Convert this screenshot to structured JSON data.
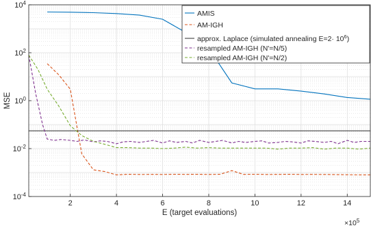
{
  "chart_data": {
    "type": "line",
    "xlabel": "E (target evaluations)",
    "ylabel": "MSE",
    "x_scale_label": "×10",
    "x_scale_exponent": "5",
    "xlim": [
      0.2,
      15
    ],
    "ylim_log10": [
      -4,
      4
    ],
    "y_scale": "log",
    "grid": true,
    "legend_position": "top-right",
    "x_ticks": [
      2,
      4,
      6,
      8,
      10,
      12,
      14
    ],
    "x_tick_labels": [
      "2",
      "4",
      "6",
      "8",
      "10",
      "12",
      "14"
    ],
    "y_ticks_log10": [
      -4,
      -2,
      0,
      2,
      4
    ],
    "y_tick_labels": [
      {
        "base": "10",
        "exp": "-4"
      },
      {
        "base": "10",
        "exp": "-2"
      },
      {
        "base": "10",
        "exp": "0"
      },
      {
        "base": "10",
        "exp": "2"
      },
      {
        "base": "10",
        "exp": "4"
      }
    ],
    "series": [
      {
        "name": "AMIS",
        "color": "#0072bd",
        "dash": "solid",
        "x": [
          1,
          2,
          3,
          4,
          5,
          6,
          7,
          8,
          9,
          10,
          11,
          12,
          13,
          14,
          15
        ],
        "y": [
          5000,
          4900,
          4700,
          4300,
          3700,
          2500,
          700,
          150,
          5.5,
          3.1,
          3.1,
          2.5,
          1.9,
          1.35,
          1.15
        ]
      },
      {
        "name": "AM-IGH",
        "color": "#d95319",
        "dash": "dashed",
        "x": [
          1,
          1.5,
          2,
          2.5,
          3,
          3.5,
          4,
          4.5,
          5,
          5.5,
          6,
          6.5,
          7,
          7.5,
          8,
          8.5,
          9,
          9.5,
          10,
          10.5,
          11,
          11.5,
          12,
          12.5,
          13,
          13.5,
          14,
          14.5,
          15
        ],
        "y": [
          35,
          12,
          3,
          0.006,
          0.0013,
          0.0011,
          0.0008,
          0.00085,
          0.00083,
          0.00084,
          0.00083,
          0.00085,
          0.00084,
          0.00085,
          0.00083,
          0.00085,
          0.0012,
          0.00084,
          0.00085,
          0.00083,
          0.00084,
          0.00085,
          0.00083,
          0.00084,
          0.00083,
          0.00082,
          0.00081,
          0.0008,
          0.0008
        ]
      },
      {
        "name": "approx. Laplace (simulated annealing E=2· 10",
        "name_sup": "6",
        "name_suffix": ")",
        "color": "#404040",
        "dash": "solid",
        "x": [
          0.2,
          15
        ],
        "y": [
          0.055,
          0.055
        ]
      },
      {
        "name": "resampled AM-IGH (N'=N/5)",
        "color": "#7e2f8e",
        "dash": "dashed",
        "x": [
          0.2,
          0.5,
          0.8,
          1,
          1.3,
          1.6,
          2,
          2.3,
          2.6,
          3,
          3.3,
          3.6,
          4,
          4.3,
          4.6,
          5,
          5.3,
          5.6,
          6,
          6.3,
          6.6,
          7,
          7.3,
          7.6,
          8,
          8.3,
          8.6,
          9,
          9.3,
          9.6,
          10,
          10.3,
          10.6,
          11,
          11.3,
          11.6,
          12,
          12.3,
          12.6,
          13,
          13.3,
          13.6,
          14,
          14.3,
          14.6,
          15
        ],
        "y": [
          80,
          2,
          0.1,
          0.025,
          0.022,
          0.024,
          0.022,
          0.02,
          0.023,
          0.019,
          0.021,
          0.02,
          0.016,
          0.019,
          0.02,
          0.018,
          0.02,
          0.022,
          0.017,
          0.021,
          0.018,
          0.02,
          0.017,
          0.022,
          0.018,
          0.02,
          0.022,
          0.017,
          0.02,
          0.018,
          0.02,
          0.021,
          0.017,
          0.018,
          0.02,
          0.019,
          0.017,
          0.021,
          0.02,
          0.018,
          0.02,
          0.016,
          0.022,
          0.018,
          0.02,
          0.02
        ]
      },
      {
        "name": "resampled AM-IGH (N'=N/2)",
        "color": "#77ac30",
        "dash": "dashed",
        "x": [
          0.2,
          0.6,
          1,
          1.5,
          2,
          2.5,
          3,
          3.5,
          4,
          4.5,
          5,
          5.5,
          6,
          6.5,
          7,
          7.5,
          8,
          8.5,
          9,
          9.5,
          10,
          10.5,
          11,
          11.5,
          12,
          12.5,
          13,
          13.5,
          14,
          14.5,
          15
        ],
        "y": [
          80,
          20,
          3,
          0.6,
          0.09,
          0.035,
          0.02,
          0.015,
          0.011,
          0.011,
          0.0105,
          0.0105,
          0.01,
          0.0105,
          0.0115,
          0.0105,
          0.011,
          0.0105,
          0.0105,
          0.0105,
          0.0105,
          0.0105,
          0.0095,
          0.0105,
          0.0105,
          0.011,
          0.0095,
          0.0105,
          0.0105,
          0.0095,
          0.0105
        ]
      }
    ]
  }
}
